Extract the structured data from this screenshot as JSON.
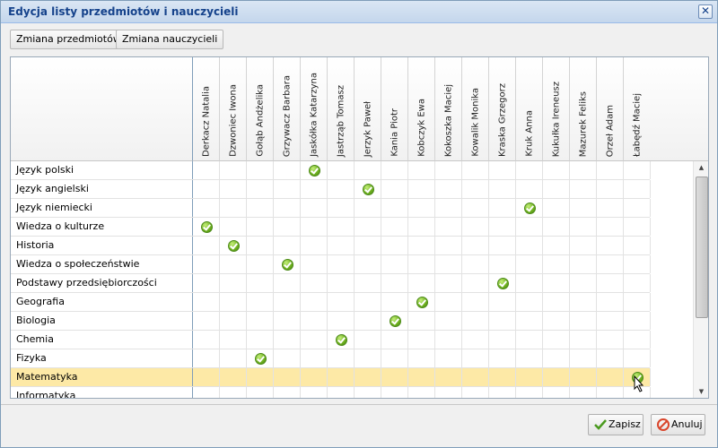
{
  "window": {
    "title": "Edycja listy przedmiotów i nauczycieli",
    "close_icon": "close-icon"
  },
  "toolbar": {
    "subjects_button": "Zmiana przedmiotów",
    "teachers_button": "Zmiana nauczycieli"
  },
  "teachers": [
    "Derkacz Natalia",
    "Dzwoniec Iwona",
    "Gołąb Andżelika",
    "Grzywacz Barbara",
    "Jaskółka Katarzyna",
    "Jastrząb Tomasz",
    "Jerzyk Paweł",
    "Kania Piotr",
    "Kobczyk Ewa",
    "Kokoszka Maciej",
    "Kowalik Monika",
    "Kraska Grzegorz",
    "Kruk Anna",
    "Kukułka Ireneusz",
    "Mazurek Feliks",
    "Orzeł Adam",
    "Łabędź Maciej"
  ],
  "subjects": [
    {
      "name": "Język polski",
      "teacher_index": 4
    },
    {
      "name": "Język angielski",
      "teacher_index": 6
    },
    {
      "name": "Język niemiecki",
      "teacher_index": 12
    },
    {
      "name": "Wiedza o kulturze",
      "teacher_index": 0
    },
    {
      "name": "Historia",
      "teacher_index": 1
    },
    {
      "name": "Wiedza o społeczeństwie",
      "teacher_index": 3
    },
    {
      "name": "Podstawy przedsiębiorczości",
      "teacher_index": 11
    },
    {
      "name": "Geografia",
      "teacher_index": 8
    },
    {
      "name": "Biologia",
      "teacher_index": 7
    },
    {
      "name": "Chemia",
      "teacher_index": 5
    },
    {
      "name": "Fizyka",
      "teacher_index": 2
    },
    {
      "name": "Matematyka",
      "teacher_index": 16
    },
    {
      "name": "Informatyka",
      "teacher_index": -1
    }
  ],
  "selected_subject": "Matematyka",
  "footer": {
    "save_button": "Zapisz",
    "cancel_button": "Anuluj"
  },
  "colors": {
    "selected_row": "#fde9a6",
    "check_green": "#6cae1e",
    "title_text": "#15428b",
    "cancel_red": "#d9452b"
  }
}
